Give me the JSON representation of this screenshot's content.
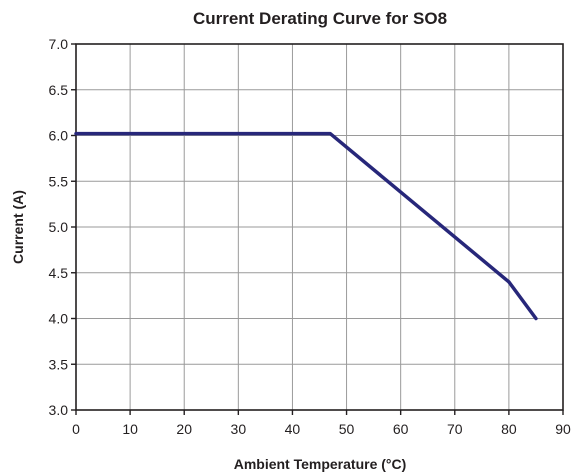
{
  "chart_data": {
    "type": "line",
    "title": "Current Derating Curve for SO8",
    "xlabel": "Ambient Temperature (°C)",
    "ylabel": "Current (A)",
    "xlim": [
      0,
      90
    ],
    "ylim": [
      3.0,
      7.0
    ],
    "x_ticks": [
      0,
      10,
      20,
      30,
      40,
      50,
      60,
      70,
      80,
      90
    ],
    "x_tick_labels": [
      "0",
      "10",
      "20",
      "30",
      "40",
      "50",
      "60",
      "70",
      "80",
      "90"
    ],
    "y_ticks": [
      3.0,
      3.5,
      4.0,
      4.5,
      5.0,
      5.5,
      6.0,
      6.5,
      7.0
    ],
    "y_tick_labels": [
      "3.0",
      "3.5",
      "4.0",
      "4.5",
      "5.0",
      "5.5",
      "6.0",
      "6.5",
      "7.0"
    ],
    "grid": true,
    "series": [
      {
        "color": "#27277a",
        "points": [
          {
            "x": 0,
            "y": 6.02
          },
          {
            "x": 47,
            "y": 6.02
          },
          {
            "x": 80,
            "y": 4.4
          },
          {
            "x": 85,
            "y": 4.0
          }
        ]
      }
    ]
  }
}
